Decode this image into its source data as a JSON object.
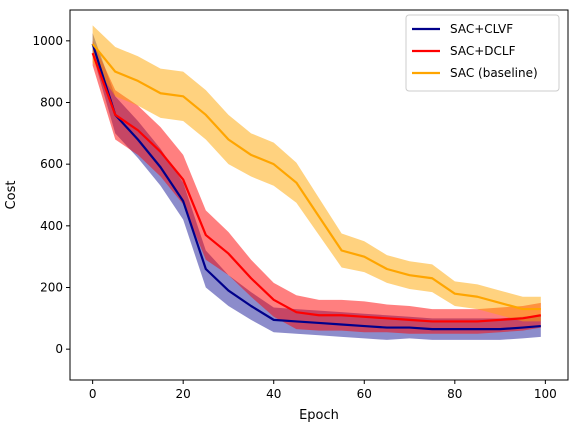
{
  "chart_data": {
    "type": "line",
    "title": "",
    "xlabel": "Epoch",
    "ylabel": "Cost",
    "xlim": [
      -5,
      105
    ],
    "ylim": [
      -100,
      1100
    ],
    "xticks": [
      0,
      20,
      40,
      60,
      80,
      100
    ],
    "yticks": [
      0,
      200,
      400,
      600,
      800,
      1000
    ],
    "grid": false,
    "legend_position": "top-right",
    "series": [
      {
        "name": "SAC+CLVF",
        "color": "#00008b",
        "band_alpha": 0.45,
        "x": [
          0,
          5,
          10,
          15,
          20,
          25,
          30,
          35,
          40,
          45,
          50,
          55,
          60,
          65,
          70,
          75,
          80,
          85,
          90,
          95,
          99
        ],
        "values": [
          990,
          760,
          680,
          590,
          480,
          260,
          190,
          140,
          95,
          90,
          85,
          80,
          75,
          70,
          70,
          65,
          65,
          65,
          65,
          70,
          75
        ],
        "band": [
          35,
          60,
          60,
          60,
          60,
          60,
          50,
          45,
          40,
          40,
          40,
          40,
          40,
          40,
          35,
          35,
          35,
          35,
          35,
          35,
          35
        ]
      },
      {
        "name": "SAC+DCLF",
        "color": "#ff0000",
        "band_alpha": 0.5,
        "x": [
          0,
          5,
          10,
          15,
          20,
          25,
          30,
          35,
          40,
          45,
          50,
          55,
          60,
          65,
          70,
          75,
          80,
          85,
          90,
          95,
          99
        ],
        "values": [
          960,
          760,
          710,
          640,
          550,
          370,
          310,
          230,
          160,
          120,
          110,
          110,
          105,
          100,
          95,
          90,
          90,
          90,
          95,
          100,
          110
        ],
        "band": [
          40,
          80,
          80,
          80,
          80,
          80,
          70,
          60,
          55,
          55,
          50,
          50,
          50,
          45,
          45,
          40,
          40,
          40,
          40,
          40,
          40
        ]
      },
      {
        "name": "SAC (baseline)",
        "color": "#ffa500",
        "band_alpha": 0.5,
        "x": [
          0,
          5,
          10,
          15,
          20,
          25,
          30,
          35,
          40,
          45,
          50,
          55,
          60,
          65,
          70,
          75,
          80,
          85,
          90,
          95,
          99
        ],
        "values": [
          990,
          900,
          870,
          830,
          820,
          760,
          680,
          630,
          600,
          540,
          430,
          320,
          300,
          260,
          240,
          230,
          180,
          170,
          150,
          130,
          130
        ],
        "band": [
          60,
          80,
          80,
          80,
          80,
          80,
          80,
          70,
          70,
          65,
          60,
          55,
          50,
          45,
          45,
          45,
          40,
          40,
          40,
          40,
          40
        ]
      }
    ]
  }
}
